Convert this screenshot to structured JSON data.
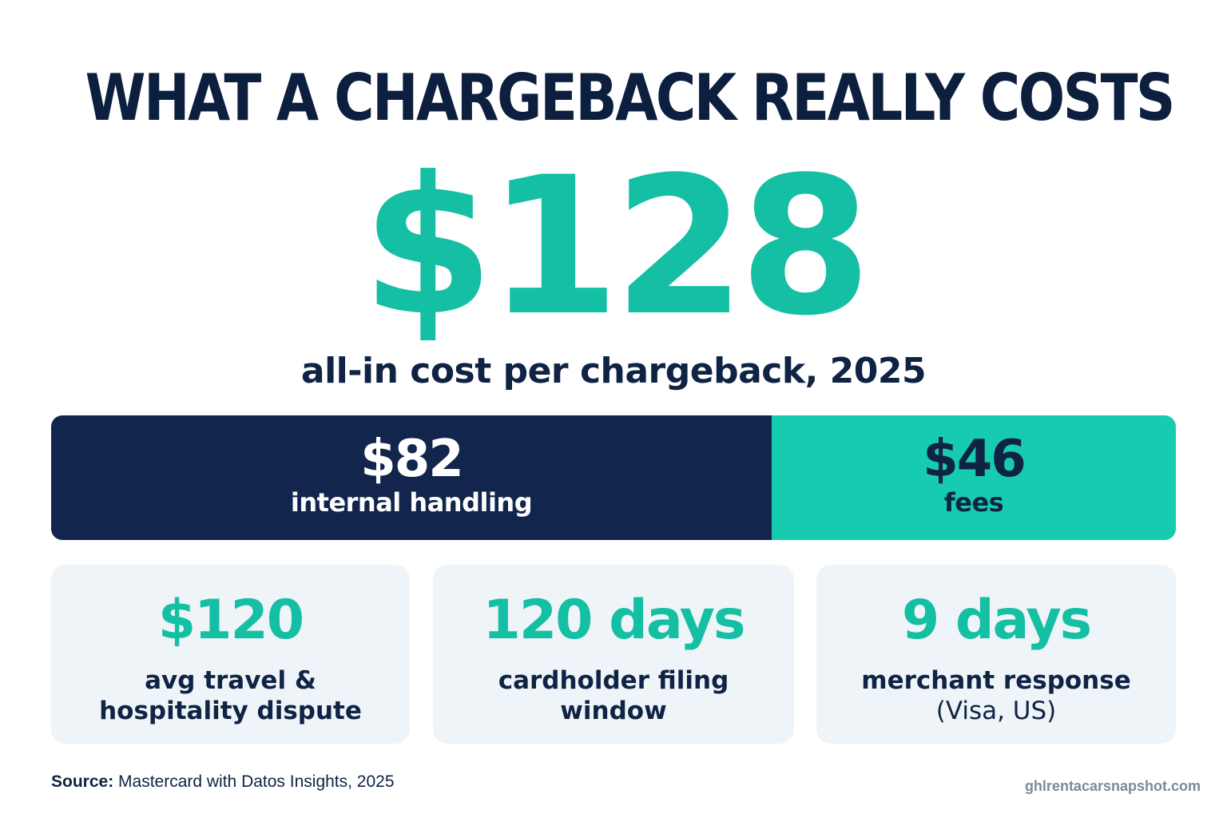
{
  "title": "WHAT A CHARGEBACK REALLY COSTS",
  "hero": {
    "value": "$128",
    "caption": "all-in cost per chargeback, 2025"
  },
  "breakdown": {
    "total": 128,
    "segments": [
      {
        "value_label": "$82",
        "label": "internal handling",
        "amount": 82,
        "color": "#12264d"
      },
      {
        "value_label": "$46",
        "label": "fees",
        "amount": 46,
        "color": "#17cbb0"
      }
    ]
  },
  "cards": [
    {
      "value": "$120",
      "label_line1": "avg travel &",
      "label_line2": "hospitality dispute"
    },
    {
      "value": "120 days",
      "label_line1": "cardholder filing",
      "label_line2": "window"
    },
    {
      "value": "9 days",
      "label_line1": "merchant response",
      "label_line2": "(Visa, US)"
    }
  ],
  "footer": {
    "source_key": "Source:",
    "source_text": "Mastercard with Datos Insights, 2025",
    "site": "ghlrentacarsnapshot.com"
  },
  "colors": {
    "navy": "#0f2344",
    "teal": "#14bfa3",
    "card_bg": "#eff4f8"
  }
}
